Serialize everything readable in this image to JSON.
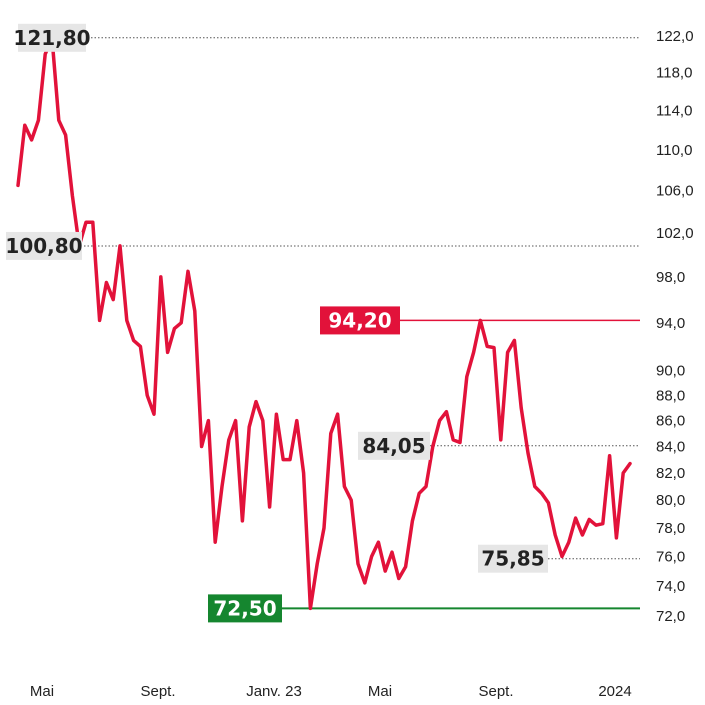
{
  "chart_data": {
    "type": "line",
    "title": "",
    "xlabel": "",
    "ylabel": "",
    "x_tick_labels": [
      "Mai",
      "Sept.",
      "Janv. 23",
      "Mai",
      "Sept.",
      "2024"
    ],
    "y_tick_labels": [
      "72,0",
      "74,0",
      "76,0",
      "78,0",
      "80,0",
      "82,0",
      "84,0",
      "86,0",
      "88,0",
      "90,0",
      "94,0",
      "98,0",
      "102,0",
      "106,0",
      "110,0",
      "114,0",
      "118,0",
      "122,0"
    ],
    "y_scale": "log",
    "ylim": [
      72.0,
      122.0
    ],
    "grid": false,
    "legend": "none",
    "colors": {
      "line": "#e2123a",
      "high": "#e2123a",
      "low": "#15862f",
      "neutral_bg": "#e6e6e6",
      "reference_line": "#555555"
    },
    "annotations": [
      {
        "label": "121,80",
        "value": 121.8,
        "style": "neutral"
      },
      {
        "label": "100,80",
        "value": 100.8,
        "style": "neutral"
      },
      {
        "label": "94,20",
        "value": 94.2,
        "style": "high"
      },
      {
        "label": "84,05",
        "value": 84.05,
        "style": "neutral"
      },
      {
        "label": "75,85",
        "value": 75.85,
        "style": "neutral"
      },
      {
        "label": "72,50",
        "value": 72.5,
        "style": "low"
      }
    ],
    "series": [
      {
        "values": [
          106.5,
          112.5,
          111.0,
          113.0,
          120.0,
          121.8,
          113.0,
          111.5,
          105.5,
          100.8,
          103.0,
          103.0,
          94.2,
          97.5,
          96.0,
          100.8,
          94.2,
          92.5,
          92.0,
          88.0,
          86.5,
          98.0,
          91.5,
          93.5,
          94.0,
          98.5,
          95.0,
          84.0,
          86.0,
          77.0,
          81.0,
          84.5,
          86.0,
          78.5,
          85.5,
          87.5,
          86.0,
          79.5,
          86.5,
          83.0,
          83.0,
          86.0,
          82.0,
          72.5,
          75.5,
          78.0,
          85.0,
          86.5,
          81.0,
          80.0,
          75.5,
          74.2,
          76.0,
          77.0,
          75.0,
          76.3,
          74.5,
          75.3,
          78.5,
          80.5,
          81.0,
          84.0,
          86.0,
          86.7,
          84.5,
          84.3,
          89.5,
          91.5,
          94.2,
          92.0,
          91.9,
          84.5,
          91.5,
          92.5,
          87.0,
          83.5,
          81.0,
          80.5,
          79.8,
          77.5,
          76.0,
          77.0,
          78.7,
          77.5,
          78.6,
          78.2,
          78.3,
          83.3,
          77.3,
          82.0,
          82.7
        ]
      }
    ]
  }
}
